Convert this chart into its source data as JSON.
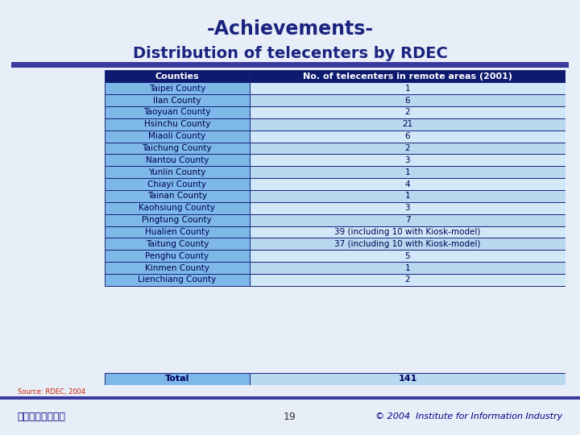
{
  "title_line1": "-Achievements-",
  "title_line2": "Distribution of telecenters by RDEC",
  "col1_header": "Counties",
  "col2_header": "No. of telecenters in remote areas (2001)",
  "rows": [
    [
      "Taipei County",
      "1"
    ],
    [
      "Ilan County",
      "6"
    ],
    [
      "Taoyuan County",
      "2"
    ],
    [
      "Hsinchu County",
      "21"
    ],
    [
      "Miaoli County",
      "6"
    ],
    [
      "Taichung County",
      "2"
    ],
    [
      "Nantou County",
      "3"
    ],
    [
      "Yunlin County",
      "1"
    ],
    [
      "Chiayi County",
      "4"
    ],
    [
      "Tainan County",
      "1"
    ],
    [
      "Kaohsiung County",
      "3"
    ],
    [
      "Pingtung County",
      "7"
    ],
    [
      "Hualien County",
      "39 (including 10 with Kiosk-model)"
    ],
    [
      "Taitung County",
      "37 (including 10 with Kiosk-model)"
    ],
    [
      "Penghu County",
      "5"
    ],
    [
      "Kinmen County",
      "1"
    ],
    [
      "Lienchiang County",
      "2"
    ]
  ],
  "total_label": "Total",
  "total_value": "141",
  "source_text": "Source: RDEC, 2004",
  "footer_left": "創新、開放、實踐",
  "footer_center": "19",
  "footer_right": "© 2004  Institute for Information Industry",
  "header_bg": "#0d1a6e",
  "header_fg": "#ffffff",
  "row_col1_bg": "#7db8e8",
  "row_col2_bg_even": "#d0e8f8",
  "row_col2_bg_odd": "#b8d8f0",
  "total_col1_bg": "#7db8e8",
  "total_col2_bg": "#b8d8f0",
  "total_fg": "#000060",
  "title_color": "#1a237e",
  "slide_bg": "#e8eef8",
  "border_color": "#000080",
  "cell_border": "#1a237e",
  "footer_line_color": "#3a3a9e",
  "source_color": "#cc2200",
  "footer_text_color": "#000080"
}
